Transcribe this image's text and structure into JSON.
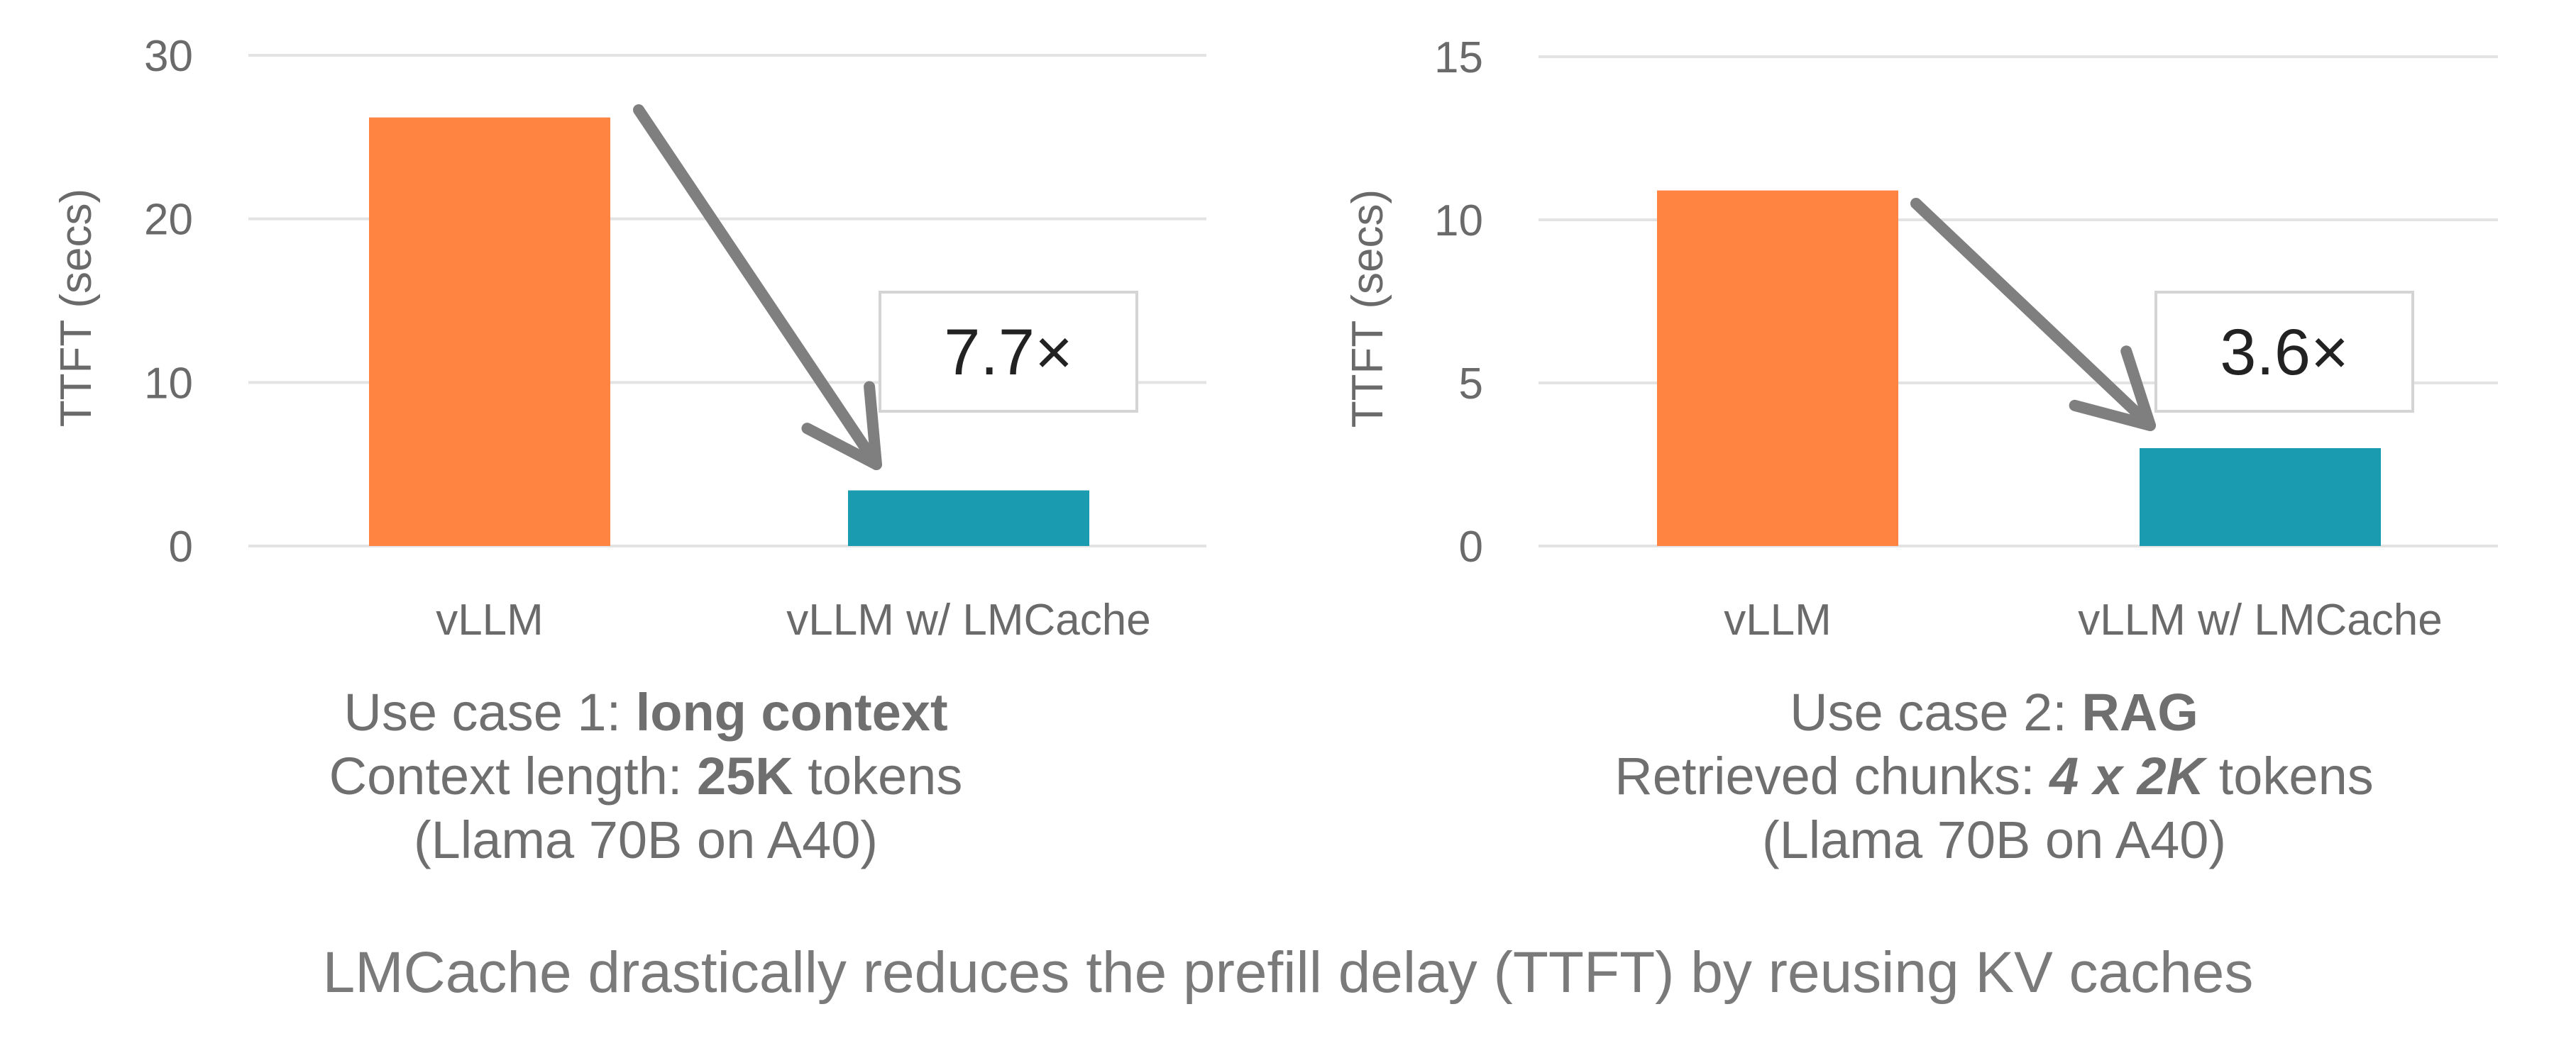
{
  "chart_data": [
    {
      "type": "bar",
      "ylabel": "TTFT (secs)",
      "ylim": [
        0,
        30
      ],
      "yticks": [
        0,
        10,
        20,
        30
      ],
      "grid": true,
      "categories": [
        "vLLM",
        "vLLM w/ LMCache"
      ],
      "values": [
        26.2,
        3.4
      ],
      "colors": [
        "#ff8442",
        "#1a9bb0"
      ],
      "annotation": "7.7×",
      "caption": {
        "line1_prefix": "Use case 1: ",
        "line1_bold": "long context",
        "line2_prefix": "Context length: ",
        "line2_bold": "25K",
        "line2_suffix": " tokens",
        "line3": "(Llama 70B on A40)"
      }
    },
    {
      "type": "bar",
      "ylabel": "TTFT (secs)",
      "ylim": [
        0,
        15
      ],
      "yticks": [
        0,
        5,
        10,
        15
      ],
      "grid": true,
      "categories": [
        "vLLM",
        "vLLM w/ LMCache"
      ],
      "values": [
        10.9,
        3.0
      ],
      "colors": [
        "#ff8442",
        "#1a9bb0"
      ],
      "annotation": "3.6×",
      "caption": {
        "line1_prefix": "Use case 2: ",
        "line1_bold": "RAG",
        "line2_prefix": "Retrieved chunks: ",
        "line2_bold": "4 x 2K",
        "line2_suffix": " tokens",
        "line3": "(Llama 70B on A40)"
      }
    }
  ],
  "footer": "LMCache drastically reduces the prefill delay (TTFT) by reusing KV caches",
  "colors": {
    "grid": "#e3e3e3",
    "tick_text": "#6a6a6a",
    "arrow": "#7f7f7f",
    "box_border": "#d4d4d4",
    "annotation_text": "#222222"
  }
}
